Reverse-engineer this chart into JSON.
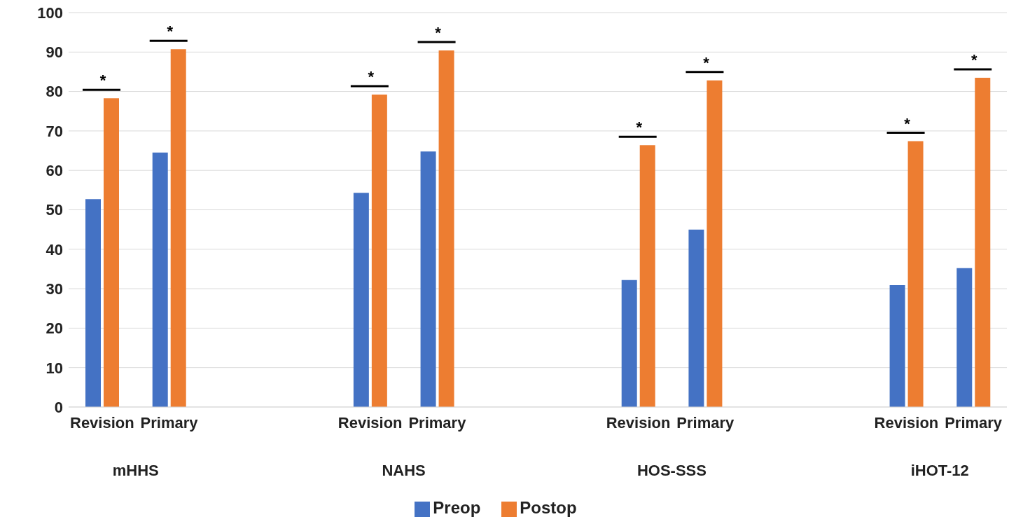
{
  "chart_data": {
    "type": "bar",
    "categories": [
      "Revision",
      "Primary",
      null,
      null,
      "Revision",
      "Primary",
      null,
      null,
      "Revision",
      "Primary",
      null,
      null,
      "Revision",
      "Primary"
    ],
    "series": [
      {
        "name": "Preop",
        "color": "#4472c4",
        "values": [
          52.7,
          64.5,
          null,
          null,
          54.3,
          64.8,
          null,
          null,
          32.2,
          45.0,
          null,
          null,
          30.9,
          35.2
        ]
      },
      {
        "name": "Postop",
        "color": "#ed7d31",
        "values": [
          78.3,
          90.7,
          null,
          null,
          79.2,
          90.4,
          null,
          null,
          66.4,
          82.8,
          null,
          null,
          67.4,
          83.5
        ]
      }
    ],
    "ylim": [
      0,
      100
    ],
    "yticks": [
      0,
      10,
      20,
      30,
      40,
      50,
      60,
      70,
      80,
      90,
      100
    ],
    "grid": "y",
    "legend": "bottom",
    "annotations": [
      "mHHS",
      "NAHS",
      "HOS-SSS",
      "iHOT-12",
      "*",
      "*",
      "*",
      "*",
      "*",
      "*",
      "*",
      "*"
    ]
  }
}
